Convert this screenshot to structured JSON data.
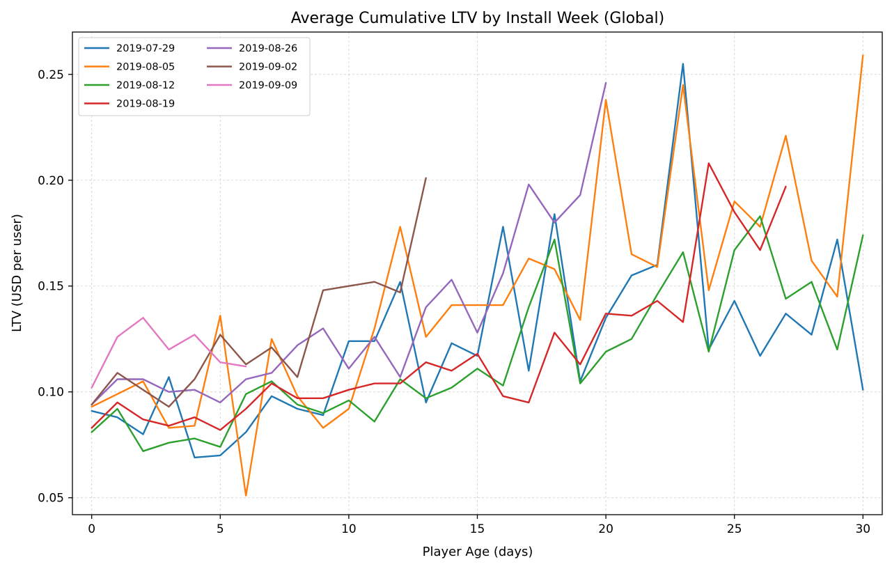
{
  "chart_data": {
    "type": "line",
    "title": "Average Cumulative LTV by Install Week (Global)",
    "xlabel": "Player Age (days)",
    "ylabel": "LTV (USD per user)",
    "xlim": [
      -0.75,
      30.75
    ],
    "ylim": [
      0.042,
      0.27
    ],
    "xticks": [
      0,
      5,
      10,
      15,
      20,
      25,
      30
    ],
    "yticks": [
      0.05,
      0.1,
      0.15,
      0.2,
      0.25
    ],
    "xtick_labels": [
      "0",
      "5",
      "10",
      "15",
      "20",
      "25",
      "30"
    ],
    "ytick_labels": [
      "0.05",
      "0.10",
      "0.15",
      "0.20",
      "0.25"
    ],
    "grid": true,
    "legend_position": "top-left",
    "series": [
      {
        "name": "2019-07-29",
        "color": "#1f77b4",
        "x": [
          0,
          1,
          2,
          3,
          4,
          5,
          6,
          7,
          8,
          9,
          10,
          11,
          12,
          13,
          14,
          15,
          16,
          17,
          18,
          19,
          20,
          21,
          22,
          23,
          24,
          25,
          26,
          27,
          28,
          29,
          30
        ],
        "values": [
          0.091,
          0.088,
          0.08,
          0.107,
          0.069,
          0.07,
          0.081,
          0.098,
          0.092,
          0.089,
          0.124,
          0.124,
          0.152,
          0.095,
          0.123,
          0.117,
          0.178,
          0.11,
          0.184,
          0.105,
          0.135,
          0.155,
          0.16,
          0.255,
          0.12,
          0.143,
          0.117,
          0.137,
          0.127,
          0.172,
          0.101
        ]
      },
      {
        "name": "2019-08-05",
        "color": "#ff7f0e",
        "x": [
          0,
          1,
          2,
          3,
          4,
          5,
          6,
          7,
          8,
          9,
          10,
          11,
          12,
          13,
          14,
          15,
          16,
          17,
          18,
          19,
          20,
          21,
          22,
          23,
          24,
          25,
          26,
          27,
          28,
          29,
          30
        ],
        "values": [
          0.093,
          0.099,
          0.105,
          0.083,
          0.084,
          0.136,
          0.051,
          0.125,
          0.098,
          0.083,
          0.092,
          0.13,
          0.178,
          0.126,
          0.141,
          0.141,
          0.141,
          0.163,
          0.158,
          0.134,
          0.238,
          0.165,
          0.159,
          0.245,
          0.148,
          0.19,
          0.178,
          0.221,
          0.162,
          0.145,
          0.259
        ]
      },
      {
        "name": "2019-08-12",
        "color": "#2ca02c",
        "x": [
          0,
          1,
          2,
          3,
          4,
          5,
          6,
          7,
          8,
          9,
          10,
          11,
          12,
          13,
          14,
          15,
          16,
          17,
          18,
          19,
          20,
          21,
          22,
          23,
          24,
          25,
          26,
          27,
          28,
          29,
          30
        ],
        "values": [
          0.081,
          0.092,
          0.072,
          0.076,
          0.078,
          0.074,
          0.099,
          0.105,
          0.094,
          0.09,
          0.096,
          0.086,
          0.106,
          0.097,
          0.102,
          0.111,
          0.103,
          0.14,
          0.172,
          0.104,
          0.119,
          0.125,
          0.146,
          0.166,
          0.119,
          0.167,
          0.183,
          0.144,
          0.152,
          0.12,
          0.174
        ]
      },
      {
        "name": "2019-08-19",
        "color": "#d62728",
        "x": [
          0,
          1,
          2,
          3,
          4,
          5,
          6,
          7,
          8,
          9,
          10,
          11,
          12,
          13,
          14,
          15,
          16,
          17,
          18,
          19,
          20,
          21,
          22,
          23,
          24,
          25,
          26,
          27
        ],
        "values": [
          0.083,
          0.095,
          0.087,
          0.084,
          0.088,
          0.082,
          0.092,
          0.104,
          0.097,
          0.097,
          0.101,
          0.104,
          0.104,
          0.114,
          0.11,
          0.118,
          0.098,
          0.095,
          0.128,
          0.113,
          0.137,
          0.136,
          0.143,
          0.133,
          0.208,
          0.185,
          0.167,
          0.197
        ]
      },
      {
        "name": "2019-08-26",
        "color": "#9467bd",
        "x": [
          0,
          1,
          2,
          3,
          4,
          5,
          6,
          7,
          8,
          9,
          10,
          11,
          12,
          13,
          14,
          15,
          16,
          17,
          18,
          19,
          20
        ],
        "values": [
          0.094,
          0.106,
          0.106,
          0.1,
          0.101,
          0.095,
          0.106,
          0.109,
          0.122,
          0.13,
          0.111,
          0.126,
          0.107,
          0.14,
          0.153,
          0.128,
          0.156,
          0.198,
          0.18,
          0.193,
          0.246
        ]
      },
      {
        "name": "2019-09-02",
        "color": "#8c564b",
        "x": [
          0,
          1,
          2,
          3,
          4,
          5,
          6,
          7,
          8,
          9,
          10,
          11,
          12,
          13
        ],
        "values": [
          0.094,
          0.109,
          0.101,
          0.093,
          0.106,
          0.127,
          0.113,
          0.121,
          0.107,
          0.148,
          0.15,
          0.152,
          0.147,
          0.201
        ]
      },
      {
        "name": "2019-09-09",
        "color": "#e377c2",
        "x": [
          0,
          1,
          2,
          3,
          4,
          5,
          6
        ],
        "values": [
          0.102,
          0.126,
          0.135,
          0.12,
          0.127,
          0.114,
          0.112
        ]
      }
    ]
  }
}
